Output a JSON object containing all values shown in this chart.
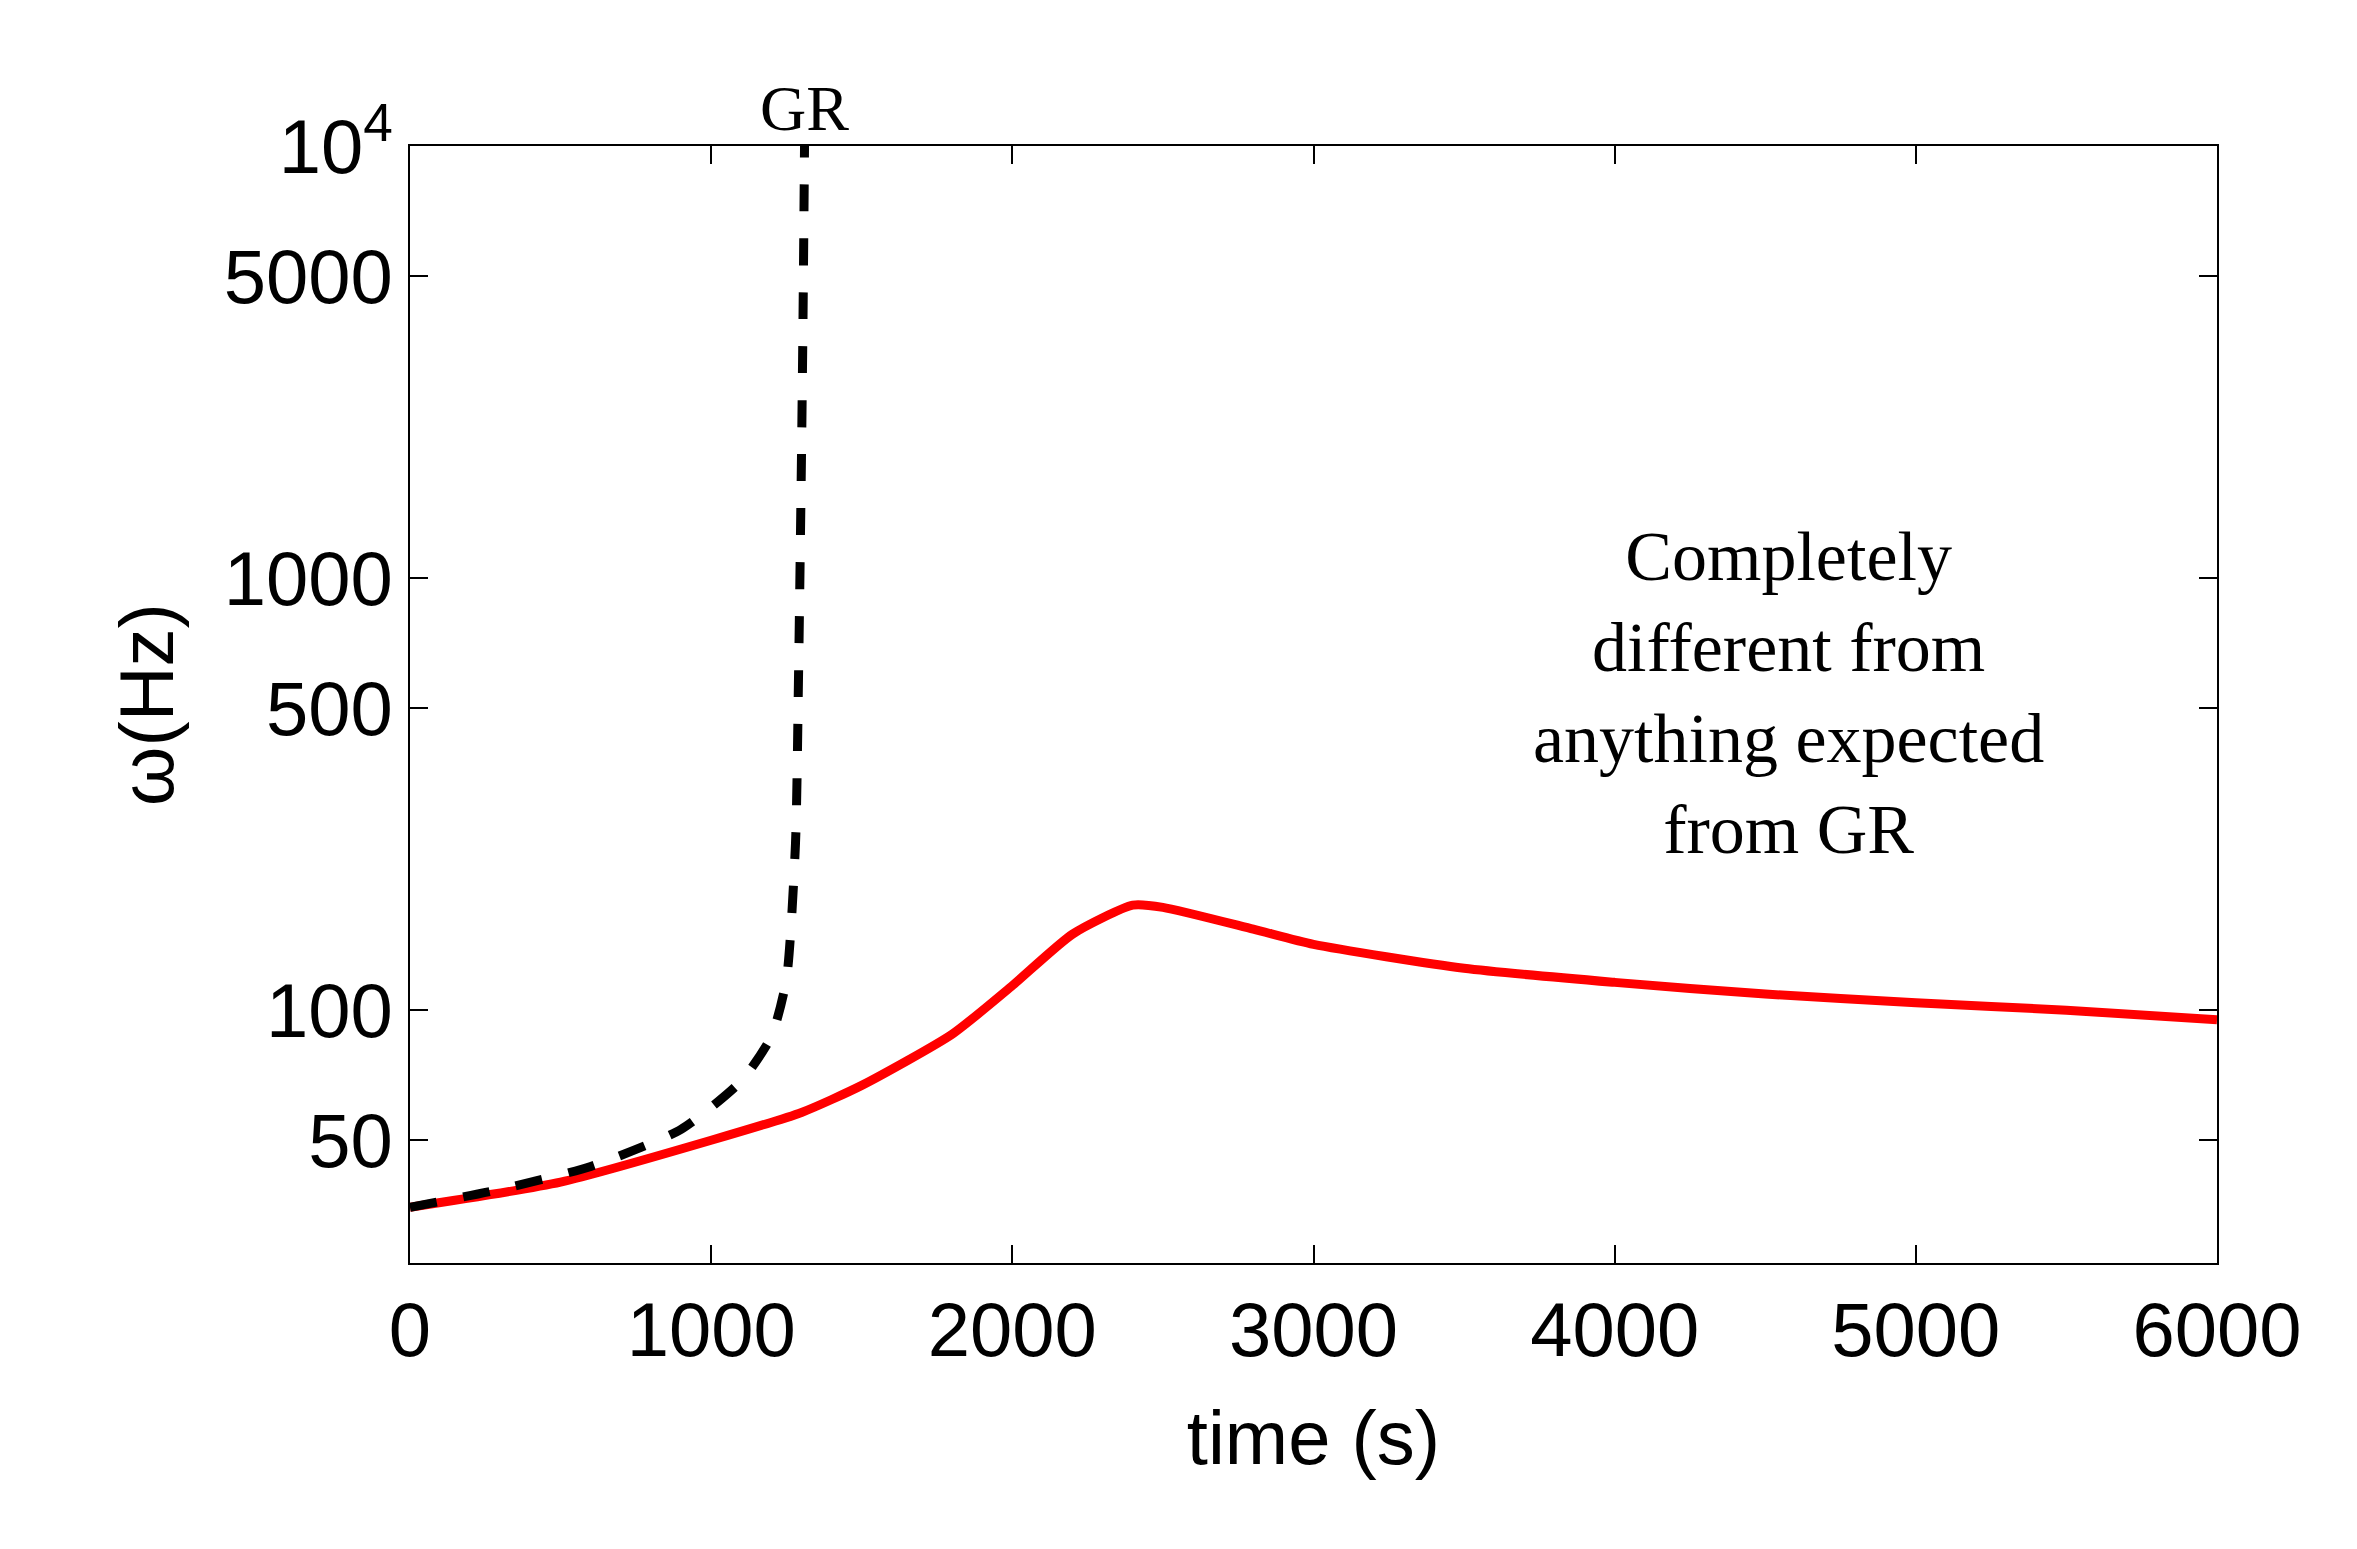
{
  "chart_data": {
    "type": "line",
    "xlabel": "time (s)",
    "ylabel": "ω(Hz)",
    "log": "y",
    "xlim": [
      0,
      6000
    ],
    "xticks": [
      0,
      1000,
      2000,
      3000,
      4000,
      5000,
      6000
    ],
    "ylim": [
      26,
      10000
    ],
    "yticks": [
      50,
      100,
      500,
      1000,
      5000,
      {
        "value": 10000,
        "label": "10$^{4}$"
      }
    ],
    "legend": false,
    "marker": "none",
    "series": [
      {
        "color": "#ff0000",
        "line_style": "solid",
        "x": [
          0,
          500,
          1000,
          1300,
          1500,
          1800,
          2000,
          2200,
          2400,
          2500,
          2800,
          3000,
          3500,
          4000,
          4500,
          5000,
          5500,
          6000
        ],
        "values": [
          35,
          40,
          50,
          58,
          67,
          88,
          114,
          150,
          175,
          173,
          154,
          142,
          125,
          116,
          109,
          104,
          100,
          95
        ]
      },
      {
        "name": "GR",
        "color": "#000000",
        "line_style": "dashed",
        "x": [
          0,
          300,
          600,
          900,
          1100,
          1200,
          1250,
          1280,
          1290,
          1300,
          1305,
          1310
        ],
        "values": [
          35,
          38.5,
          43.5,
          53,
          68.6,
          87,
          118,
          243,
          590,
          1950,
          4000,
          10000
        ]
      }
    ],
    "annotations": [
      "Completely\ndifferent from\nanything expected\nfrom GR"
    ]
  }
}
